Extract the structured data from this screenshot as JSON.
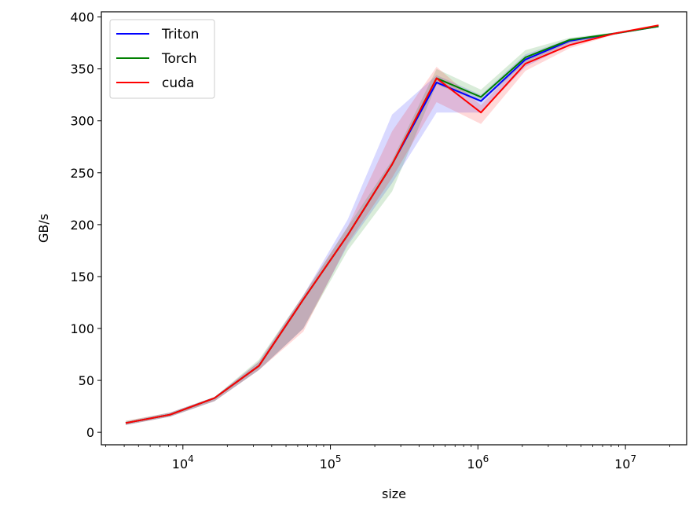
{
  "chart_data": {
    "type": "line",
    "title": "",
    "xlabel": "size",
    "ylabel": "GB/s",
    "xscale": "log",
    "xlim": [
      2800,
      26000000
    ],
    "ylim": [
      -12,
      405
    ],
    "grid": false,
    "legend_position": "top-left",
    "x": [
      4096,
      8192,
      16384,
      32768,
      65536,
      131072,
      262144,
      524288,
      1048576,
      2097152,
      4194304,
      8388608,
      16777216
    ],
    "xticks": [
      {
        "value": 10000,
        "base": "10",
        "exp": "4"
      },
      {
        "value": 100000,
        "base": "10",
        "exp": "5"
      },
      {
        "value": 1000000,
        "base": "10",
        "exp": "6"
      },
      {
        "value": 10000000,
        "base": "10",
        "exp": "7"
      }
    ],
    "yticks": [
      {
        "value": 0,
        "label": "0"
      },
      {
        "value": 50,
        "label": "50"
      },
      {
        "value": 100,
        "label": "100"
      },
      {
        "value": 150,
        "label": "150"
      },
      {
        "value": 200,
        "label": "200"
      },
      {
        "value": 250,
        "label": "250"
      },
      {
        "value": 300,
        "label": "300"
      },
      {
        "value": 350,
        "label": "350"
      },
      {
        "value": 400,
        "label": "400"
      }
    ],
    "series": [
      {
        "name": "Triton",
        "color": "#0000ff",
        "fill": "#0000ff",
        "values": [
          9,
          17,
          33,
          64,
          128,
          190,
          258,
          337,
          319,
          359,
          377,
          384,
          391
        ],
        "lower": [
          7,
          15,
          30,
          60,
          100,
          180,
          240,
          308,
          308,
          352,
          373,
          383,
          390
        ],
        "upper": [
          10,
          19,
          34,
          68,
          132,
          205,
          306,
          344,
          325,
          364,
          379,
          385,
          392
        ]
      },
      {
        "name": "Torch",
        "color": "#008000",
        "fill": "#008000",
        "values": [
          9,
          17,
          33,
          64,
          128,
          190,
          258,
          341,
          323,
          361,
          378,
          384,
          391
        ],
        "lower": [
          7,
          15,
          30,
          60,
          100,
          175,
          232,
          335,
          318,
          356,
          375,
          383,
          390
        ],
        "upper": [
          11,
          19,
          34,
          70,
          132,
          198,
          262,
          350,
          330,
          368,
          380,
          385,
          392
        ]
      },
      {
        "name": "cuda",
        "color": "#ff0000",
        "fill": "#ff0000",
        "values": [
          9,
          17,
          33,
          64,
          128,
          190,
          258,
          341,
          308,
          355,
          373,
          384,
          392
        ],
        "lower": [
          7,
          15,
          30,
          60,
          97,
          182,
          245,
          318,
          297,
          348,
          370,
          383,
          391
        ],
        "upper": [
          11,
          19,
          34,
          68,
          132,
          198,
          290,
          352,
          315,
          360,
          376,
          385,
          393
        ]
      }
    ]
  }
}
